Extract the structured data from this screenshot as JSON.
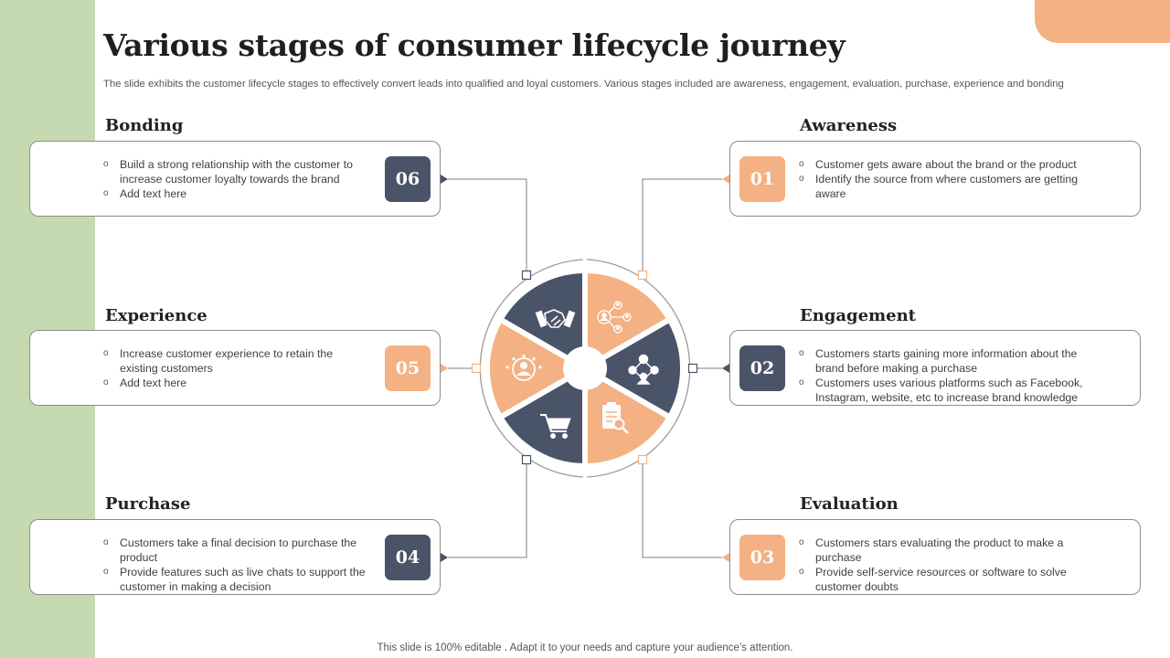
{
  "header": {
    "title": "Various stages of consumer lifecycle journey",
    "subtitle": "The slide exhibits the customer lifecycle stages to effectively convert leads into qualified and loyal customers. Various stages included are awareness, engagement, evaluation, purchase, experience and bonding"
  },
  "colors": {
    "dark": "#4a5468",
    "accent": "#f4b183",
    "band": "#c6dab2"
  },
  "stages": [
    {
      "number": "01",
      "title": "Awareness",
      "icon": "group-network-icon",
      "bullets": [
        "Customer gets aware  about the brand  or the product",
        "Identify  the source from  where  customers are getting aware"
      ]
    },
    {
      "number": "02",
      "title": "Engagement",
      "icon": "people-network-icon",
      "bullets": [
        "Customers starts gaining more information  about the brand before  making a purchase",
        "Customers uses various  platforms such as Facebook, Instagram,  website,  etc to increase brand  knowledge"
      ]
    },
    {
      "number": "03",
      "title": "Evaluation",
      "icon": "clipboard-search-icon",
      "bullets": [
        "Customers stars evaluating  the product to make a purchase",
        "Provide  self-service  resources or software to solve customer doubts"
      ]
    },
    {
      "number": "04",
      "title": "Purchase",
      "icon": "shopping-cart-icon",
      "bullets": [
        "Customers take a final decision to purchase the product",
        "Provide  features  such as live  chats to support the customer in making a decision"
      ]
    },
    {
      "number": "05",
      "title": "Experience",
      "icon": "customer-rating-icon",
      "bullets": [
        "Increase  customer experience to retain the existing customers",
        "Add text here"
      ]
    },
    {
      "number": "06",
      "title": "Bonding",
      "icon": "handshake-icon",
      "bullets": [
        "Build  a strong relationship with the customer to increase customer loyalty towards  the brand",
        "Add text here"
      ]
    }
  ],
  "footer": {
    "text": "This slide is 100% editable . Adapt it to your needs and capture your audience’s attention."
  }
}
